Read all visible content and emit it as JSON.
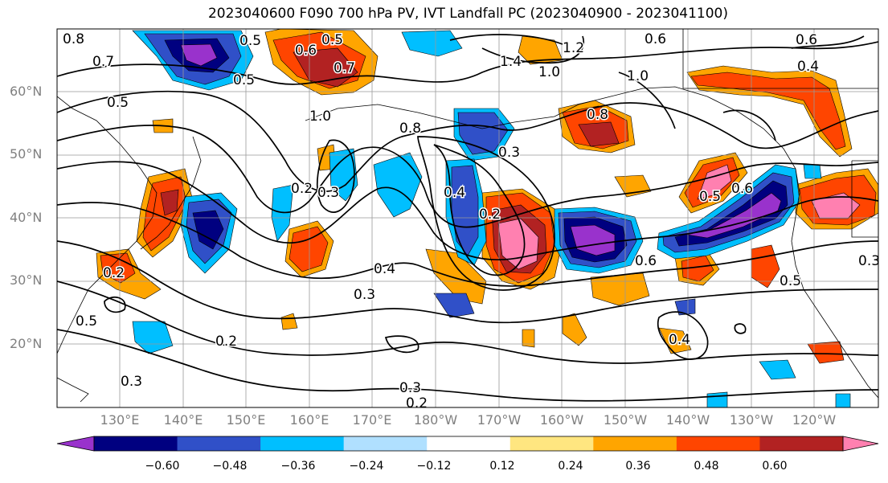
{
  "title": "2023040600 F090 700 hPa PV, IVT Landfall PC (2023040900 - 2023041100)",
  "map": {
    "lat_labels": [
      "60°N",
      "50°N",
      "40°N",
      "30°N",
      "20°N"
    ],
    "lon_labels": [
      "130°E",
      "140°E",
      "150°E",
      "160°E",
      "170°E",
      "180°W",
      "170°W",
      "160°W",
      "150°W",
      "140°W",
      "130°W",
      "120°W"
    ],
    "contour_labels": [
      "0.8",
      "0.5",
      "0.5",
      "0.6",
      "0.6",
      "0.6",
      "0.4",
      "0.7",
      "0.5",
      "0.7",
      "1.4",
      "1.0",
      "1.2",
      "1.0",
      "0.5",
      "1.0",
      "0.8",
      "0.3",
      "0.8",
      "0.2",
      "0.4",
      "0.2",
      "0.5",
      "0.6",
      "0.6",
      "0.5",
      "0.2",
      "0.3",
      "0.4",
      "0.3",
      "0.5",
      "0.2",
      "0.3",
      "0.3",
      "0.2",
      "0.4",
      "0.3"
    ]
  },
  "colorbar": {
    "ticks": [
      "−0.60",
      "−0.48",
      "−0.36",
      "−0.24",
      "−0.12",
      "0.12",
      "0.24",
      "0.36",
      "0.48",
      "0.60"
    ],
    "colors": [
      "#9932cc",
      "#000080",
      "#3050c8",
      "#00bfff",
      "#b0e0ff",
      "#ffffff",
      "#ffe680",
      "#ffa500",
      "#ff4500",
      "#b22222",
      "#ff80b0"
    ]
  }
}
